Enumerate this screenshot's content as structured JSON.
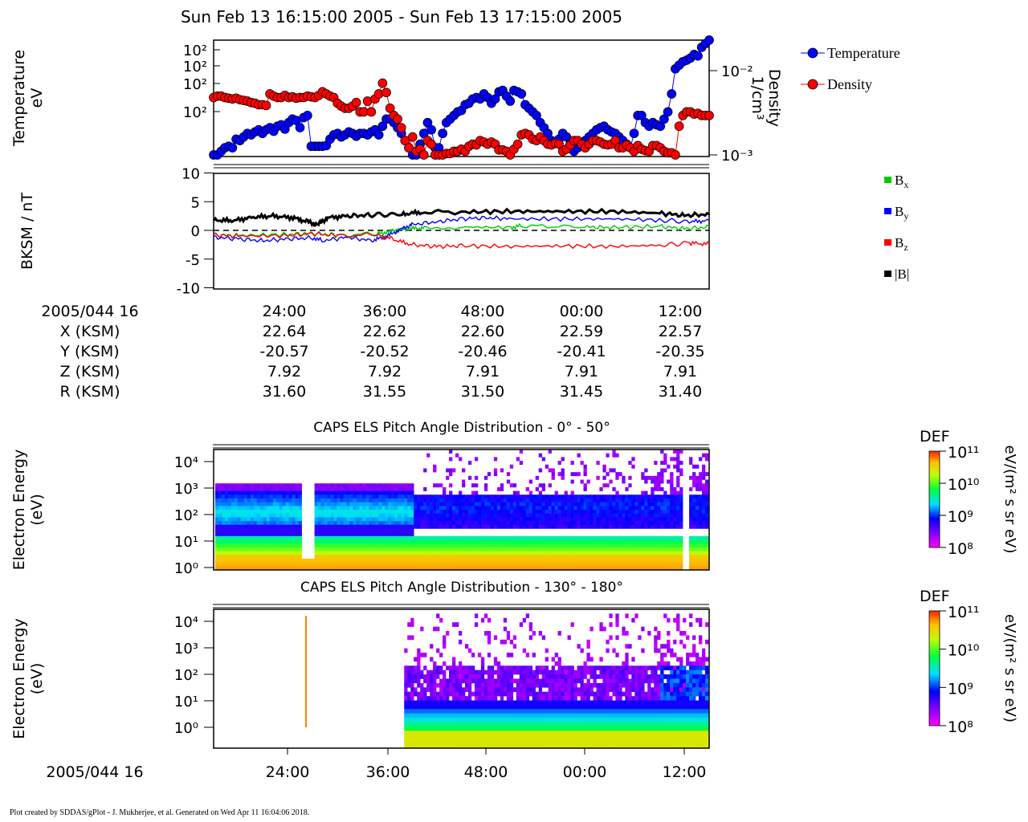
{
  "title": "Sun Feb 13 16:15:00 2005 - Sun Feb 13 17:15:00 2005",
  "footer": "Plot created by SDDAS/gPlot - J. Mukherjee, et al.  Generated on Wed Apr 11 16:04:06 2018.",
  "colors": {
    "temperature": "#0000ff",
    "density": "#ff0000",
    "bx": "#00cc00",
    "by": "#0000ff",
    "bz": "#ff0000",
    "bmag": "#000000"
  },
  "chart_data": [
    {
      "type": "scatter",
      "title": "",
      "ylabel_left": [
        "Temperature",
        "eV"
      ],
      "ylabel_right": [
        "Density",
        "1/cm³"
      ],
      "left_ticks": [
        "10²",
        "10²",
        "10²",
        "10²"
      ],
      "right_ticks": [
        "10⁻²",
        "10⁻³"
      ],
      "right_scale": "log",
      "legend_position": "right",
      "series": [
        {
          "name": "Temperature",
          "axis": "left",
          "color": "#0000ff",
          "values": [
            0.0,
            0.0,
            0.05,
            0.1,
            0.12,
            0.1,
            0.22,
            0.2,
            0.25,
            0.3,
            0.28,
            0.32,
            0.35,
            0.3,
            0.35,
            0.38,
            0.33,
            0.4,
            0.42,
            0.36,
            0.45,
            0.5,
            0.48,
            0.38,
            0.52,
            0.55,
            0.12,
            0.12,
            0.12,
            0.12,
            0.13,
            0.22,
            0.28,
            0.3,
            0.25,
            0.28,
            0.32,
            0.3,
            0.26,
            0.3,
            0.3,
            0.28,
            0.32,
            0.35,
            0.28,
            0.4,
            0.5,
            0.5,
            0.45,
            0.38,
            0.3,
            0.2,
            0.1,
            0.0,
            0.0,
            0.15,
            0.3,
            0.45,
            0.35,
            0.1,
            0.1,
            0.3,
            0.45,
            0.5,
            0.55,
            0.6,
            0.62,
            0.7,
            0.72,
            0.78,
            0.8,
            0.78,
            0.85,
            0.8,
            0.72,
            0.78,
            0.88,
            0.9,
            0.82,
            0.75,
            0.9,
            0.88,
            0.85,
            0.7,
            0.65,
            0.6,
            0.55,
            0.45,
            0.38,
            0.3,
            0.2,
            0.18,
            0.22,
            0.3,
            0.25,
            0.15,
            0.05,
            0.1,
            0.15,
            0.2,
            0.25,
            0.3,
            0.35,
            0.38,
            0.4,
            0.35,
            0.32,
            0.3,
            0.25,
            0.2,
            0.15,
            0.1,
            0.3,
            0.55,
            0.55,
            0.45,
            0.4,
            0.45,
            0.42,
            0.4,
            0.5,
            0.6,
            0.85,
            1.2,
            1.25,
            1.3,
            1.32,
            1.35,
            1.4,
            1.38,
            1.5,
            1.55,
            1.6
          ]
        },
        {
          "name": "Density",
          "axis": "right",
          "color": "#ff0000",
          "values": [
            0.8,
            0.82,
            0.82,
            0.8,
            0.79,
            0.78,
            0.79,
            0.77,
            0.76,
            0.75,
            0.73,
            0.72,
            0.7,
            0.7,
            0.69,
            0.85,
            0.82,
            0.8,
            0.8,
            0.83,
            0.8,
            0.81,
            0.79,
            0.8,
            0.8,
            0.82,
            0.81,
            0.8,
            0.83,
            0.88,
            0.85,
            0.82,
            0.8,
            0.72,
            0.68,
            0.65,
            0.65,
            0.68,
            0.73,
            0.6,
            0.6,
            0.75,
            0.6,
            0.78,
            0.85,
            1.0,
            0.87,
            0.65,
            0.55,
            0.5,
            0.38,
            0.2,
            0.1,
            0.25,
            0.05,
            0.08,
            0.0,
            0.2,
            0.15,
            0.0,
            0.0,
            0.0,
            0.02,
            0.02,
            0.05,
            0.05,
            0.08,
            0.05,
            0.12,
            0.15,
            0.14,
            0.2,
            0.18,
            0.15,
            0.18,
            0.15,
            0.07,
            0.07,
            0.05,
            0.0,
            0.08,
            0.15,
            0.28,
            0.3,
            0.28,
            0.22,
            0.2,
            0.25,
            0.2,
            0.15,
            0.14,
            0.16,
            0.15,
            0.05,
            0.08,
            0.14,
            0.2,
            0.2,
            0.15,
            0.1,
            0.15,
            0.2,
            0.2,
            0.18,
            0.15,
            0.14,
            0.15,
            0.2,
            0.1,
            0.1,
            0.14,
            0.1,
            0.05,
            0.13,
            0.08,
            0.06,
            0.05,
            0.13,
            0.13,
            0.1,
            0.05,
            0.03,
            0.03,
            0.0,
            0.4,
            0.55,
            0.6,
            0.6,
            0.57,
            0.58,
            0.55,
            0.55,
            0.55
          ]
        }
      ]
    },
    {
      "type": "line",
      "ylabel": "BKSM / nT",
      "yticks": [
        "10",
        "5",
        "0",
        "-5",
        "-10"
      ],
      "ylim": [
        -10,
        10
      ],
      "legend_position": "right",
      "zero_line": true,
      "series": [
        {
          "name": "Bx",
          "color": "#00cc00",
          "segments": [
            [
              0,
              -0.8
            ],
            [
              0.05,
              -0.9
            ],
            [
              0.15,
              -0.7
            ],
            [
              0.2,
              -0.5
            ],
            [
              0.25,
              -0.8
            ],
            [
              0.33,
              -0.6
            ],
            [
              0.35,
              -0.3
            ],
            [
              0.37,
              0.1
            ],
            [
              0.4,
              0.3
            ],
            [
              0.43,
              0.5
            ],
            [
              0.5,
              0.6
            ],
            [
              0.6,
              0.5
            ],
            [
              0.62,
              0.8
            ],
            [
              0.75,
              0.6
            ],
            [
              0.8,
              0.5
            ],
            [
              0.9,
              0.7
            ],
            [
              0.95,
              0.3
            ],
            [
              1.0,
              0.6
            ]
          ]
        },
        {
          "name": "By",
          "color": "#0000ff",
          "segments": [
            [
              0,
              -1.2
            ],
            [
              0.05,
              -1.5
            ],
            [
              0.1,
              -1.8
            ],
            [
              0.15,
              -1.5
            ],
            [
              0.2,
              -1.3
            ],
            [
              0.22,
              -1.8
            ],
            [
              0.27,
              -1.2
            ],
            [
              0.32,
              -1.8
            ],
            [
              0.35,
              -1.0
            ],
            [
              0.38,
              0.3
            ],
            [
              0.4,
              1.0
            ],
            [
              0.45,
              1.5
            ],
            [
              0.5,
              2.0
            ],
            [
              0.55,
              2.2
            ],
            [
              0.6,
              2.0
            ],
            [
              0.7,
              2.0
            ],
            [
              0.8,
              2.0
            ],
            [
              0.9,
              1.8
            ],
            [
              0.96,
              1.5
            ],
            [
              1.0,
              1.7
            ]
          ]
        },
        {
          "name": "Bz",
          "color": "#ff0000",
          "segments": [
            [
              0,
              -0.8
            ],
            [
              0.05,
              -1.0
            ],
            [
              0.15,
              -0.9
            ],
            [
              0.2,
              -0.6
            ],
            [
              0.25,
              -0.9
            ],
            [
              0.33,
              -0.8
            ],
            [
              0.36,
              -1.5
            ],
            [
              0.4,
              -2.5
            ],
            [
              0.45,
              -2.8
            ],
            [
              0.5,
              -2.7
            ],
            [
              0.6,
              -2.8
            ],
            [
              0.7,
              -2.7
            ],
            [
              0.8,
              -2.8
            ],
            [
              0.9,
              -2.6
            ],
            [
              0.96,
              -2.2
            ],
            [
              1.0,
              -2.4
            ]
          ]
        },
        {
          "name": "|B|",
          "color": "#000000",
          "segments": [
            [
              0,
              1.8
            ],
            [
              0.04,
              1.7
            ],
            [
              0.08,
              2.3
            ],
            [
              0.12,
              2.5
            ],
            [
              0.16,
              2.2
            ],
            [
              0.19,
              1.5
            ],
            [
              0.21,
              1.0
            ],
            [
              0.23,
              2.2
            ],
            [
              0.27,
              2.5
            ],
            [
              0.32,
              2.7
            ],
            [
              0.38,
              2.8
            ],
            [
              0.42,
              3.2
            ],
            [
              0.5,
              3.2
            ],
            [
              0.6,
              3.3
            ],
            [
              0.7,
              3.3
            ],
            [
              0.8,
              3.3
            ],
            [
              0.9,
              3.0
            ],
            [
              0.95,
              2.6
            ],
            [
              1.0,
              2.8
            ]
          ]
        }
      ]
    },
    {
      "type": "table",
      "columns": [
        "2005/044 16",
        "24:00",
        "36:00",
        "48:00",
        "00:00",
        "12:00"
      ],
      "rows": [
        {
          "label": "X (KSM)",
          "values": [
            "22.64",
            "22.62",
            "22.60",
            "22.59",
            "22.57"
          ]
        },
        {
          "label": "Y (KSM)",
          "values": [
            "-20.57",
            "-20.52",
            "-20.46",
            "-20.41",
            "-20.35"
          ]
        },
        {
          "label": "Z (KSM)",
          "values": [
            "7.92",
            "7.92",
            "7.91",
            "7.91",
            "7.91"
          ]
        },
        {
          "label": "R (KSM)",
          "values": [
            "31.60",
            "31.55",
            "31.50",
            "31.45",
            "31.40"
          ]
        }
      ]
    },
    {
      "type": "heatmap",
      "title": "CAPS ELS Pitch Angle Distribution - 0° - 50°",
      "ylabel": [
        "Electron Energy",
        "(eV)"
      ],
      "yticks": [
        "10⁴",
        "10³",
        "10²",
        "10¹",
        "10⁰"
      ],
      "colorbar": {
        "label": "DEF",
        "units": "eV/(m² s sr eV)",
        "ticks": [
          "10¹¹",
          "10¹⁰",
          "10⁹",
          "10⁸"
        ]
      }
    },
    {
      "type": "heatmap",
      "title": "CAPS ELS Pitch Angle Distribution - 130° - 180°",
      "ylabel": [
        "Electron Energy",
        "(eV)"
      ],
      "yticks": [
        "10⁴",
        "10³",
        "10²",
        "10¹",
        "10⁰"
      ],
      "xticks": [
        "24:00",
        "36:00",
        "48:00",
        "00:00",
        "12:00"
      ],
      "xlabel_prefix": "2005/044 16",
      "colorbar": {
        "label": "DEF",
        "units": "eV/(m² s sr eV)",
        "ticks": [
          "10¹¹",
          "10¹⁰",
          "10⁹",
          "10⁸"
        ]
      }
    }
  ],
  "legend_mag": [
    {
      "base": "B",
      "sub": "x",
      "color": "#00cc00"
    },
    {
      "base": "B",
      "sub": "y",
      "color": "#0000ff"
    },
    {
      "base": "B",
      "sub": "z",
      "color": "#ff0000"
    },
    {
      "base": "|B|",
      "sub": "",
      "color": "#000000"
    }
  ]
}
